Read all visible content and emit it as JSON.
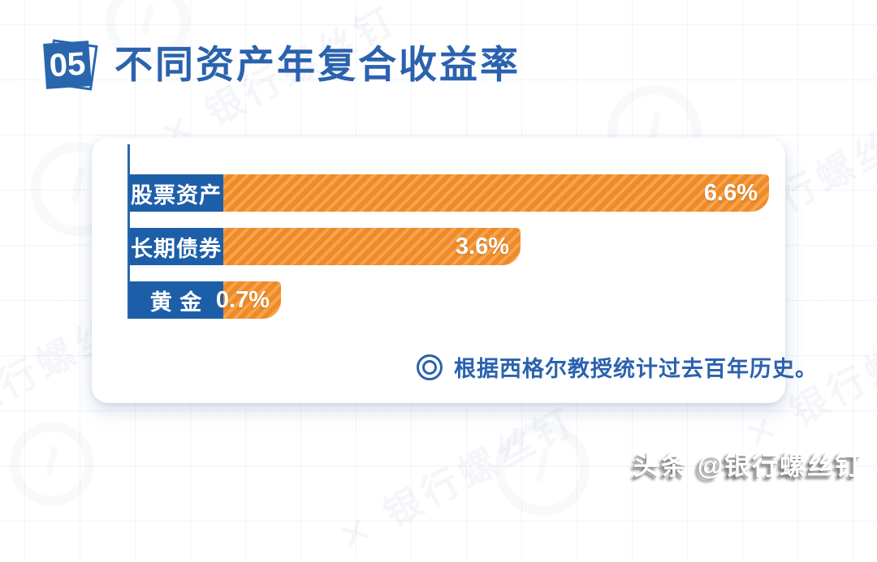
{
  "page": {
    "badge": "05",
    "title": "不同资产年复合收益率"
  },
  "background": {
    "grid": true,
    "diagonal_watermark_text": "✕ 银行螺丝钉",
    "bottom_watermark_text": "头条 @银行螺丝钉"
  },
  "chart_data": {
    "type": "bar",
    "orientation": "horizontal",
    "title": "不同资产年复合收益率",
    "categories": [
      "股票资产",
      "长期债券",
      "黄 金"
    ],
    "values": [
      6.6,
      3.6,
      0.7
    ],
    "value_labels": [
      "6.6%",
      "3.6%",
      "0.7%"
    ],
    "unit": "%",
    "xlim": [
      0,
      6.8
    ],
    "grid": false,
    "legend": false,
    "note": "根据西格尔教授统计过去百年历史。",
    "note_icon": "double-circle-icon",
    "colors": {
      "bar": "#ee8a27",
      "bar_stripe": "#f6a44f",
      "category_label_bg": "#1d5ea9",
      "category_label_text": "#ffffff",
      "value_label_text": "#ffffff",
      "axis": "#2a66ae",
      "note_text": "#2b62ae",
      "title_text": "#2b62ae"
    }
  }
}
